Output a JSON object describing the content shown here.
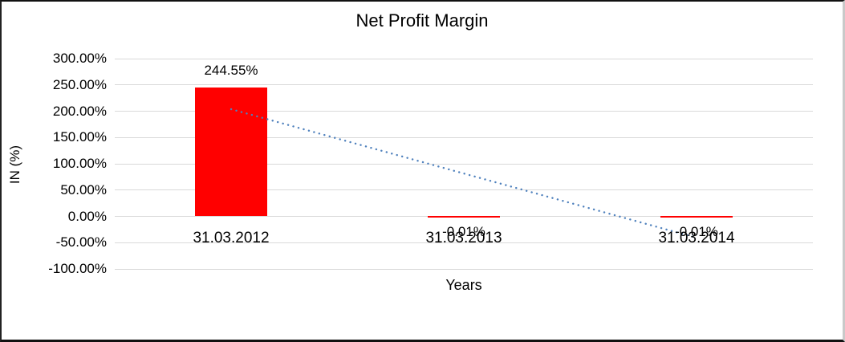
{
  "chart_data": {
    "type": "bar",
    "title": "Net Profit Margin",
    "xlabel": "Years",
    "ylabel": "IN (%)",
    "categories": [
      "31.03.2012",
      "31.03.2013",
      "31.03.2014"
    ],
    "values": [
      244.55,
      -0.01,
      -0.01
    ],
    "value_labels": [
      "244.55%",
      "-0.01%",
      "-0.01%"
    ],
    "ylim": [
      -100,
      300
    ],
    "ytick_step": 50,
    "ytick_labels": [
      "300.00%",
      "250.00%",
      "200.00%",
      "150.00%",
      "100.00%",
      "50.00%",
      "0.00%",
      "-50.00%",
      "-100.00%"
    ],
    "grid": true,
    "legend": "none",
    "bar_color": "#FF0000",
    "gridline_color": "#D9D9D9",
    "text_color": "#000000",
    "trendline": {
      "type": "linear",
      "style": "dotted",
      "color": "#4F81BD",
      "endpoints": [
        {
          "category_index": 0,
          "value": 203.8
        },
        {
          "category_index": 2,
          "value": -40.8
        }
      ]
    }
  }
}
